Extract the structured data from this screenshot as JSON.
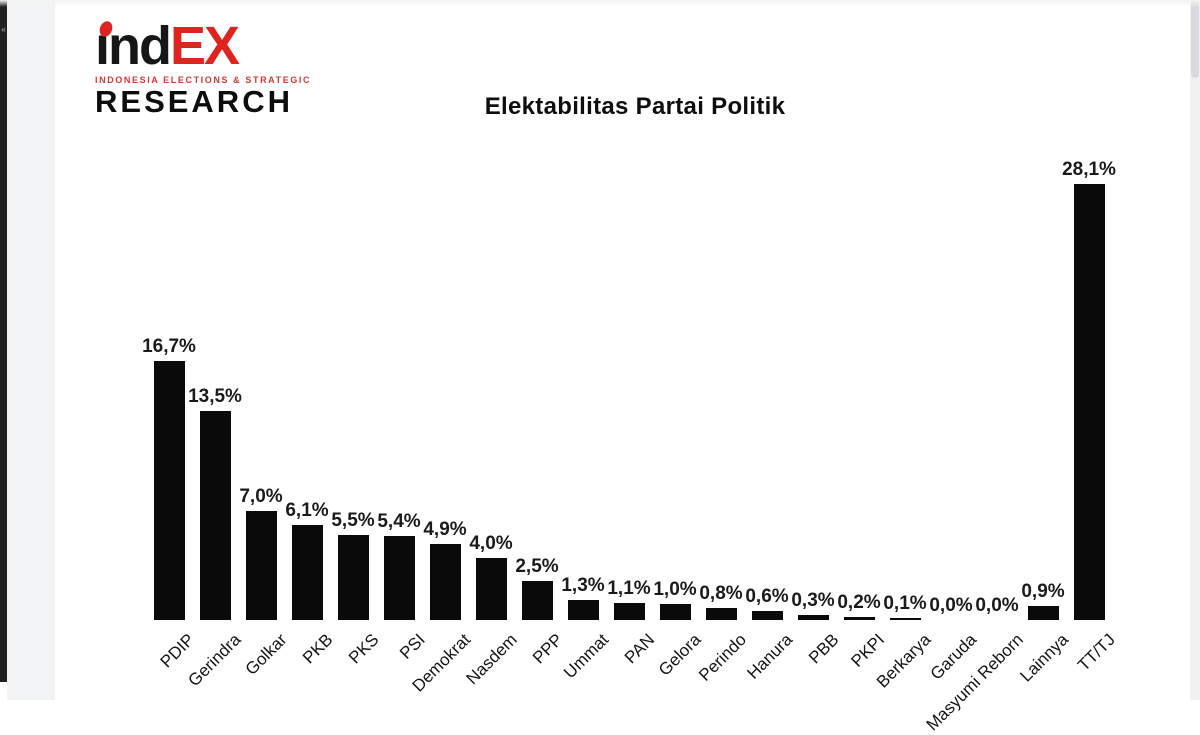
{
  "window": {
    "left_rail_collapse_glyph": "«"
  },
  "logo": {
    "line1_black": "ınd",
    "line1_red": "EX",
    "tagline": "INDONESIA  ELECTIONS  &  STRATEGIC",
    "line2": "RESEARCH",
    "red": "#df2420",
    "black": "#161616"
  },
  "chart_data": {
    "type": "bar",
    "title": "Elektabilitas Partai Politik",
    "categories": [
      "PDIP",
      "Gerindra",
      "Golkar",
      "PKB",
      "PKS",
      "PSI",
      "Demokrat",
      "Nasdem",
      "PPP",
      "Ummat",
      "PAN",
      "Gelora",
      "Perindo",
      "Hanura",
      "PBB",
      "PKPI",
      "Berkarya",
      "Garuda",
      "Masyumi Reborn",
      "Lainnya",
      "TT/TJ"
    ],
    "values": [
      16.7,
      13.5,
      7.0,
      6.1,
      5.5,
      5.4,
      4.9,
      4.0,
      2.5,
      1.3,
      1.1,
      1.0,
      0.8,
      0.6,
      0.3,
      0.2,
      0.1,
      0.0,
      0.0,
      0.9,
      28.1
    ],
    "value_labels": [
      "16,7%",
      "13,5%",
      "7,0%",
      "6,1%",
      "5,5%",
      "5,4%",
      "4,9%",
      "4,0%",
      "2,5%",
      "1,3%",
      "1,1%",
      "1,0%",
      "0,8%",
      "0,6%",
      "0,3%",
      "0,2%",
      "0,1%",
      "0,0%",
      "0,0%",
      "0,9%",
      "28,1%"
    ],
    "bar_color": "#0a0a0a",
    "xlabel": "",
    "ylabel": "",
    "ylim": [
      0,
      30
    ],
    "grid": false,
    "legend": "none",
    "value_label_position": "above-bar",
    "x_label_rotation_deg": -45
  }
}
